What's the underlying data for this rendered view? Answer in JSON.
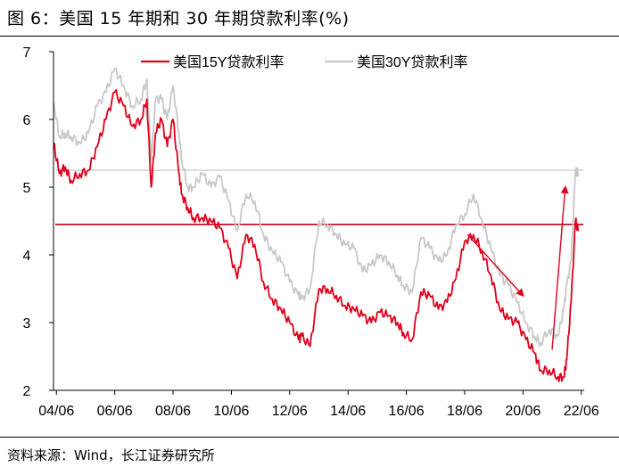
{
  "figure": {
    "title": "图 6：美国 15 年期和 30 年期贷款利率(%)",
    "source": "资料来源：Wind，长江证券研究所"
  },
  "chart_data": {
    "type": "line",
    "x_ticks": [
      "04/06",
      "06/06",
      "08/06",
      "10/06",
      "12/06",
      "14/06",
      "16/06",
      "18/06",
      "20/06",
      "22/06"
    ],
    "y_ticks": [
      2,
      3,
      4,
      5,
      6,
      7
    ],
    "ylim": [
      2,
      7
    ],
    "xlim": [
      2004.4,
      2022.6
    ],
    "grid": false,
    "legend": "top",
    "series": [
      {
        "name": "美国15Y贷款利率",
        "color": "#e0001b",
        "x": [
          2004.4,
          2004.6,
          2004.8,
          2005.0,
          2005.3,
          2005.6,
          2005.9,
          2006.2,
          2006.5,
          2006.8,
          2007.1,
          2007.4,
          2007.6,
          2007.75,
          2007.9,
          2008.1,
          2008.3,
          2008.5,
          2008.7,
          2008.8,
          2009.0,
          2009.2,
          2009.5,
          2009.8,
          2010.1,
          2010.4,
          2010.7,
          2011.0,
          2011.3,
          2011.6,
          2011.9,
          2012.2,
          2012.5,
          2012.8,
          2012.9,
          2013.2,
          2013.5,
          2013.8,
          2014.1,
          2014.4,
          2014.7,
          2015.0,
          2015.3,
          2015.6,
          2015.9,
          2016.2,
          2016.4,
          2016.7,
          2017.0,
          2017.3,
          2017.6,
          2017.9,
          2018.2,
          2018.5,
          2018.8,
          2019.1,
          2019.4,
          2019.7,
          2020.0,
          2020.3,
          2020.6,
          2020.9,
          2021.1,
          2021.4,
          2021.7,
          2021.9,
          2022.0,
          2022.15,
          2022.3,
          2022.4
        ],
        "values": [
          5.65,
          5.2,
          5.3,
          5.1,
          5.2,
          5.25,
          5.6,
          6.0,
          6.4,
          6.2,
          5.9,
          6.0,
          6.3,
          5.0,
          5.8,
          6.0,
          5.6,
          6.0,
          5.2,
          4.9,
          4.7,
          4.55,
          4.55,
          4.5,
          4.4,
          4.1,
          3.65,
          4.3,
          4.15,
          3.6,
          3.35,
          3.2,
          3.0,
          2.75,
          2.8,
          2.65,
          3.5,
          3.5,
          3.4,
          3.25,
          3.2,
          3.1,
          3.0,
          3.15,
          3.1,
          3.0,
          2.85,
          2.75,
          3.45,
          3.4,
          3.2,
          3.3,
          3.65,
          4.2,
          4.3,
          4.05,
          3.7,
          3.2,
          3.05,
          3.0,
          2.75,
          2.55,
          2.3,
          2.3,
          2.2,
          2.2,
          2.45,
          3.3,
          4.5,
          4.35
        ]
      },
      {
        "name": "美国30Y贷款利率",
        "color": "#c8c8c8",
        "x": [
          2004.4,
          2004.6,
          2004.8,
          2005.0,
          2005.3,
          2005.6,
          2005.9,
          2006.2,
          2006.5,
          2006.8,
          2007.1,
          2007.4,
          2007.6,
          2007.75,
          2007.9,
          2008.1,
          2008.3,
          2008.5,
          2008.7,
          2008.8,
          2009.0,
          2009.2,
          2009.5,
          2009.8,
          2010.1,
          2010.4,
          2010.7,
          2011.0,
          2011.3,
          2011.6,
          2011.9,
          2012.2,
          2012.5,
          2012.8,
          2012.9,
          2013.2,
          2013.5,
          2013.8,
          2014.1,
          2014.4,
          2014.7,
          2015.0,
          2015.3,
          2015.6,
          2015.9,
          2016.2,
          2016.4,
          2016.7,
          2017.0,
          2017.3,
          2017.6,
          2017.9,
          2018.2,
          2018.5,
          2018.8,
          2019.1,
          2019.4,
          2019.7,
          2020.0,
          2020.3,
          2020.6,
          2020.9,
          2021.1,
          2021.4,
          2021.7,
          2021.9,
          2022.0,
          2022.15,
          2022.3,
          2022.4
        ],
        "values": [
          6.25,
          5.75,
          5.8,
          5.75,
          5.65,
          5.8,
          6.2,
          6.4,
          6.75,
          6.5,
          6.2,
          6.3,
          6.6,
          5.4,
          6.3,
          6.3,
          6.0,
          6.5,
          5.8,
          5.4,
          5.0,
          5.0,
          5.2,
          5.0,
          5.15,
          4.8,
          4.35,
          4.9,
          4.8,
          4.3,
          4.05,
          3.9,
          3.6,
          3.4,
          3.35,
          3.5,
          4.5,
          4.45,
          4.3,
          4.15,
          4.1,
          3.75,
          3.85,
          4.0,
          3.9,
          3.7,
          3.55,
          3.45,
          4.25,
          4.1,
          3.9,
          4.0,
          4.45,
          4.6,
          4.9,
          4.5,
          4.1,
          3.7,
          3.55,
          3.3,
          3.0,
          2.8,
          2.7,
          2.9,
          2.8,
          3.2,
          3.55,
          3.9,
          5.25,
          5.2
        ]
      }
    ],
    "reference_lines": [
      {
        "y": 5.25,
        "color": "#c8c8c8"
      },
      {
        "y": 4.45,
        "color": "#c0001a"
      }
    ],
    "annotations": [
      {
        "type": "arrow",
        "from": [
          2018.6,
          4.3
        ],
        "to": [
          2020.5,
          3.4
        ],
        "color": "#e0001b"
      },
      {
        "type": "arrow",
        "from": [
          2021.5,
          2.6
        ],
        "to": [
          2021.95,
          5.0
        ],
        "color": "#e0001b"
      }
    ]
  }
}
